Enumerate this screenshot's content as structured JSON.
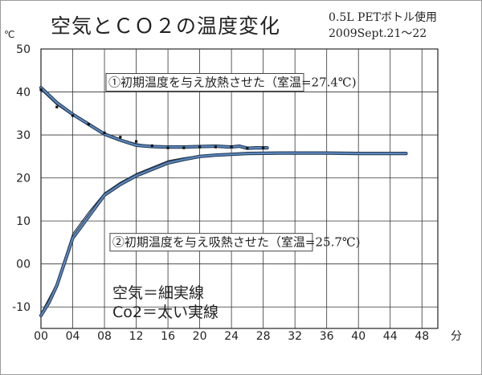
{
  "chart_data": {
    "type": "line",
    "title": "空気とＣＯ２の温度変化",
    "subtitle_lines": [
      "0.5L PETボトル使用",
      "2009Sept.21～22"
    ],
    "y_unit": "℃",
    "x_unit": "分",
    "ylim": [
      -15,
      50
    ],
    "xlim": [
      0,
      50
    ],
    "grid": true,
    "x_ticks": [
      {
        "value": 0,
        "label": "00"
      },
      {
        "value": 4,
        "label": "04"
      },
      {
        "value": 8,
        "label": "08"
      },
      {
        "value": 12,
        "label": "12"
      },
      {
        "value": 16,
        "label": "16"
      },
      {
        "value": 20,
        "label": "20"
      },
      {
        "value": 24,
        "label": "24"
      },
      {
        "value": 28,
        "label": "28"
      },
      {
        "value": 32,
        "label": "32"
      },
      {
        "value": 36,
        "label": "36"
      },
      {
        "value": 40,
        "label": "40"
      },
      {
        "value": 44,
        "label": "44"
      },
      {
        "value": 48,
        "label": "48"
      }
    ],
    "y_ticks": [
      {
        "value": 50,
        "label": "50"
      },
      {
        "value": 40,
        "label": "40"
      },
      {
        "value": 30,
        "label": "30"
      },
      {
        "value": 20,
        "label": "20"
      },
      {
        "value": 10,
        "label": "10"
      },
      {
        "value": 0,
        "label": "00"
      },
      {
        "value": -10,
        "label": "-10"
      }
    ],
    "annotations": [
      {
        "text": "①初期温度を与え放熱させた（室温=27.4℃)",
        "anchor_x": 8.5,
        "anchor_y": 41.5
      },
      {
        "text": "②初期温度を与え吸熱させた（室温=25.7℃)",
        "anchor_x": 9,
        "anchor_y": 4.3
      }
    ],
    "legend_lines": [
      "空気＝細実線",
      "Co2＝太い実線"
    ],
    "series": [
      {
        "group": "cooling",
        "style": "thin",
        "x": [
          0,
          2,
          4,
          6,
          8,
          10,
          12,
          14,
          16,
          18,
          20,
          22,
          24,
          25,
          26,
          27,
          28.5
        ],
        "y": [
          40.5,
          37.0,
          34.5,
          32.5,
          30.5,
          29.0,
          28.0,
          27.4,
          27.0,
          27.0,
          27.1,
          27.2,
          27.0,
          27.2,
          26.8,
          27.0,
          27.0
        ]
      },
      {
        "group": "cooling",
        "style": "thick",
        "x": [
          0,
          2,
          4,
          6,
          8,
          10,
          12,
          14,
          16,
          18,
          20,
          22,
          24,
          25,
          26,
          27,
          28.5
        ],
        "y": [
          41.0,
          37.5,
          34.8,
          32.5,
          30.2,
          28.8,
          27.6,
          27.3,
          27.2,
          27.2,
          27.3,
          27.4,
          27.2,
          27.4,
          26.9,
          27.0,
          27.0
        ]
      },
      {
        "group": "cooling",
        "style": "markers",
        "x": [
          0,
          2,
          4,
          6,
          8,
          10,
          12,
          14,
          16,
          18,
          20,
          22,
          24,
          26,
          28
        ],
        "y": [
          40.5,
          36.5,
          34.5,
          32.5,
          30.5,
          29.5,
          28.5,
          27.5,
          27.0,
          27.0,
          27.2,
          27.2,
          27.3,
          27.0,
          27.0
        ]
      },
      {
        "group": "heating",
        "style": "thin",
        "x": [
          0,
          1,
          2,
          4,
          6,
          8,
          10,
          12,
          14,
          16,
          18,
          20,
          22,
          24,
          26,
          30,
          36,
          40,
          45
        ],
        "y": [
          -11.5,
          -8.0,
          -4.5,
          7.0,
          12.0,
          16.5,
          19.0,
          21.0,
          22.5,
          24.0,
          24.7,
          25.2,
          25.5,
          25.6,
          25.6,
          25.6,
          25.6,
          25.5,
          25.5
        ]
      },
      {
        "group": "heating",
        "style": "thick",
        "x": [
          0,
          1,
          2,
          4,
          6,
          8,
          10,
          12,
          14,
          16,
          18,
          20,
          22,
          24,
          26,
          30,
          36,
          40,
          46
        ],
        "y": [
          -12.0,
          -9.0,
          -5.0,
          6.0,
          11.0,
          16.0,
          18.5,
          20.5,
          22.0,
          23.5,
          24.3,
          25.0,
          25.3,
          25.5,
          25.7,
          25.8,
          25.8,
          25.7,
          25.7
        ]
      }
    ]
  }
}
